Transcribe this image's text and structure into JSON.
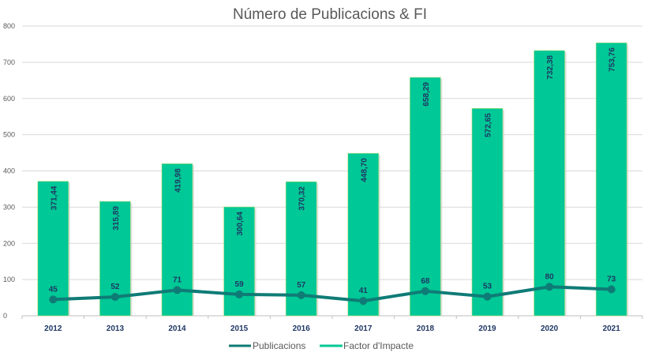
{
  "chart_data": {
    "type": "bar",
    "title": "Número de Publicacions & FI",
    "xlabel": "",
    "ylabel": "",
    "ylim": [
      0,
      800
    ],
    "yticks": [
      0,
      100,
      200,
      300,
      400,
      500,
      600,
      700,
      800
    ],
    "grid": true,
    "legend_position": "bottom",
    "categories": [
      "2012",
      "2013",
      "2014",
      "2015",
      "2016",
      "2017",
      "2018",
      "2019",
      "2020",
      "2021"
    ],
    "series": [
      {
        "name": "Publicacions",
        "kind": "line",
        "color": "#0f7b76",
        "values": [
          45,
          52,
          71,
          59,
          57,
          41,
          68,
          53,
          80,
          73
        ],
        "labels": [
          "45",
          "52",
          "71",
          "59",
          "57",
          "41",
          "68",
          "53",
          "80",
          "73"
        ]
      },
      {
        "name": "Factor d'Impacte",
        "kind": "bar",
        "color": "#00c896",
        "values": [
          371.44,
          315.89,
          419.98,
          300.64,
          370.32,
          448.7,
          658.29,
          572.65,
          732.38,
          753.76
        ],
        "labels": [
          "371,44",
          "315,89",
          "419,98",
          "300,64",
          "370,32",
          "448,70",
          "658,29",
          "572,65",
          "732,38",
          "753,76"
        ]
      }
    ]
  }
}
